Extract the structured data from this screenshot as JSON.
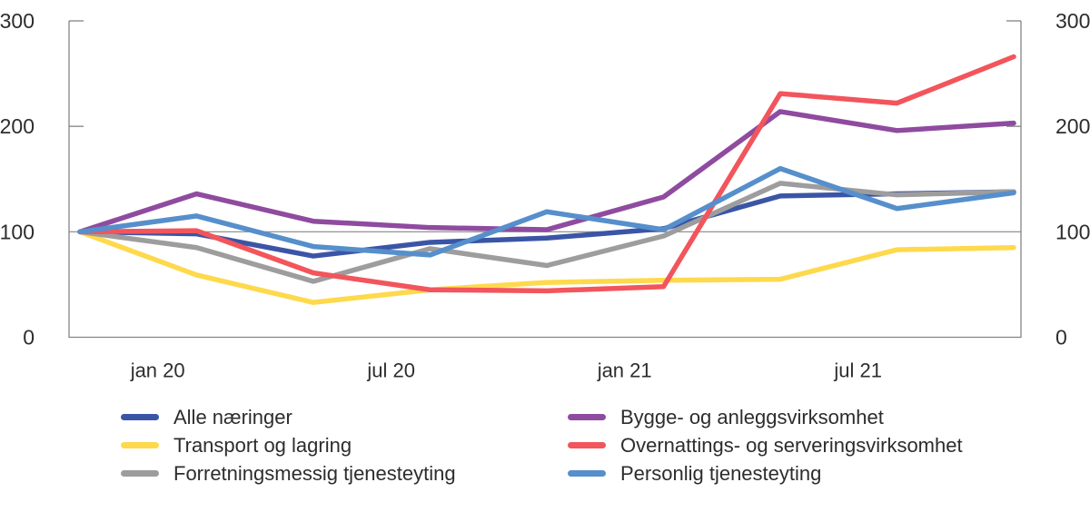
{
  "chart_data": {
    "type": "line",
    "title": "",
    "x_unit": "months",
    "x_range_months": 24,
    "points_months": [
      0,
      3,
      6,
      9,
      12,
      15,
      18,
      21,
      24
    ],
    "x_tick_labels": [
      {
        "month": 2,
        "label": "jan 20"
      },
      {
        "month": 8,
        "label": "jul 20"
      },
      {
        "month": 14,
        "label": "jan 21"
      },
      {
        "month": 20,
        "label": "jul 21"
      }
    ],
    "y_axis": {
      "min": 0,
      "max": 300,
      "ticks": [
        0,
        100,
        200,
        300
      ],
      "gridline_at": 100,
      "labels_both_sides": true
    },
    "series": [
      {
        "id": "alle-naeringer",
        "name": "Alle næringer",
        "color": "#3B55A6",
        "values": [
          100,
          98,
          77,
          90,
          94,
          103,
          134,
          136,
          138
        ]
      },
      {
        "id": "transport-og-lagring",
        "name": "Transport og lagring",
        "color": "#FED94C",
        "values": [
          100,
          59,
          33,
          45,
          52,
          54,
          55,
          83,
          85
        ]
      },
      {
        "id": "forretningsmessig-tjenesteyting",
        "name": "Forretningsmessig tjenesteyting",
        "color": "#9D9D9D",
        "values": [
          100,
          85,
          53,
          84,
          68,
          96,
          146,
          135,
          138
        ]
      },
      {
        "id": "bygge-og-anleggsvirksomhet",
        "name": "Bygge- og anleggsvirksomhet",
        "color": "#8F4B9F",
        "values": [
          100,
          136,
          110,
          104,
          102,
          133,
          214,
          196,
          203
        ]
      },
      {
        "id": "overnattings-og-serveringsvirksomhet",
        "name": "Overnattings- og serveringsvirksomhet",
        "color": "#F2555C",
        "values": [
          100,
          101,
          61,
          45,
          44,
          48,
          231,
          222,
          266
        ]
      },
      {
        "id": "personlig-tjenesteyting",
        "name": "Personlig tjenesteyting",
        "color": "#568FCB",
        "values": [
          100,
          115,
          86,
          78,
          119,
          102,
          160,
          122,
          137
        ]
      }
    ],
    "legend": {
      "position": "bottom",
      "columns": [
        [
          0,
          1,
          2
        ],
        [
          3,
          4,
          5
        ]
      ]
    },
    "axis_color": "#848484",
    "text_color": "#2d2d2d",
    "line_width": 5.5
  }
}
